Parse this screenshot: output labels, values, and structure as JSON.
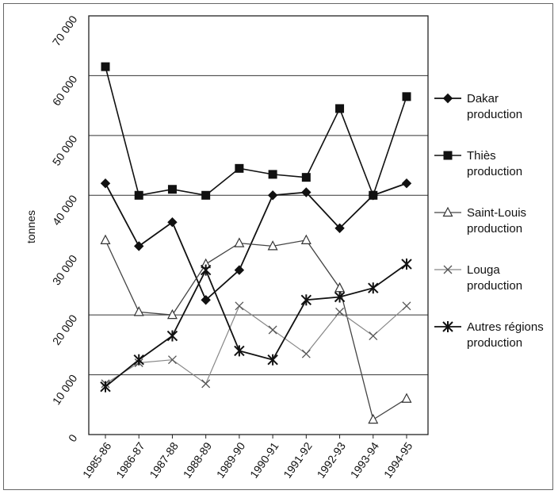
{
  "chart_data": {
    "type": "line",
    "title": "",
    "xlabel": "",
    "ylabel": "tonnes",
    "ylim": [
      0,
      70000
    ],
    "yticks": [
      "0",
      "10 000",
      "20 000",
      "30 000",
      "40 000",
      "50 000",
      "60 000",
      "70 000"
    ],
    "grid": "horizontal at 10 000, 20 000, 40 000, 50 000, 60 000",
    "legend_position": "right",
    "categories": [
      "1985-86",
      "1986-87",
      "1987-88",
      "1988-89",
      "1989-90",
      "1990-91",
      "1991-92",
      "1992-93",
      "1993-94",
      "1994-95"
    ],
    "series": [
      {
        "name": "Dakar production",
        "name_lines": [
          "Dakar",
          "production"
        ],
        "marker": "diamond-filled",
        "values": [
          42000,
          31500,
          35500,
          22500,
          27500,
          40000,
          40500,
          34500,
          40000,
          42000
        ]
      },
      {
        "name": "Thiès production",
        "name_lines": [
          "Thiès",
          "production"
        ],
        "marker": "square-filled",
        "values": [
          61500,
          40000,
          41000,
          40000,
          44500,
          43500,
          43000,
          54500,
          40000,
          56500
        ]
      },
      {
        "name": "Saint-Louis production",
        "name_lines": [
          "Saint-Louis",
          "production"
        ],
        "marker": "triangle-open",
        "values": [
          32500,
          20500,
          20000,
          28500,
          32000,
          31500,
          32500,
          24500,
          2500,
          6000
        ]
      },
      {
        "name": "Louga production",
        "name_lines": [
          "Louga",
          "production"
        ],
        "marker": "x",
        "values": [
          8500,
          12000,
          12500,
          8500,
          21500,
          17500,
          13500,
          20500,
          16500,
          21500
        ]
      },
      {
        "name": "Autres régions production",
        "name_lines": [
          "Autres régions",
          "production"
        ],
        "marker": "asterisk",
        "values": [
          8000,
          12500,
          16500,
          27500,
          14000,
          12500,
          22500,
          23000,
          24500,
          28500
        ]
      }
    ]
  }
}
